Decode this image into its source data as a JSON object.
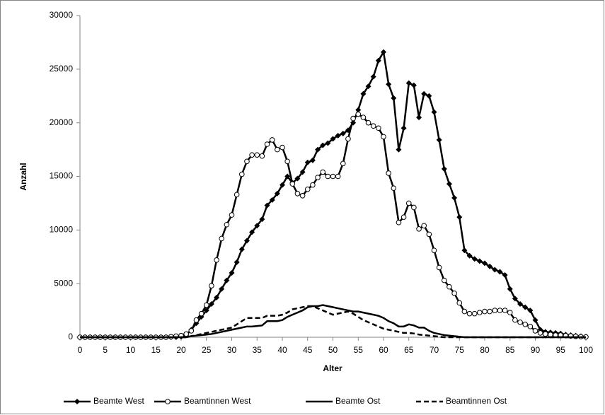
{
  "chart_data": {
    "type": "line",
    "x_label": "Alter",
    "y_label": "Anzahl",
    "x": [
      0,
      1,
      2,
      3,
      4,
      5,
      6,
      7,
      8,
      9,
      10,
      11,
      12,
      13,
      14,
      15,
      16,
      17,
      18,
      19,
      20,
      21,
      22,
      23,
      24,
      25,
      26,
      27,
      28,
      29,
      30,
      31,
      32,
      33,
      34,
      35,
      36,
      37,
      38,
      39,
      40,
      41,
      42,
      43,
      44,
      45,
      46,
      47,
      48,
      49,
      50,
      51,
      52,
      53,
      54,
      55,
      56,
      57,
      58,
      59,
      60,
      61,
      62,
      63,
      64,
      65,
      66,
      67,
      68,
      69,
      70,
      71,
      72,
      73,
      74,
      75,
      76,
      77,
      78,
      79,
      80,
      81,
      82,
      83,
      84,
      85,
      86,
      87,
      88,
      89,
      90,
      91,
      92,
      93,
      94,
      95,
      96,
      97,
      98,
      99,
      100
    ],
    "xlim": [
      0,
      100
    ],
    "xticks": [
      0,
      5,
      10,
      15,
      20,
      25,
      30,
      35,
      40,
      45,
      50,
      55,
      60,
      65,
      70,
      75,
      80,
      85,
      90,
      95,
      100
    ],
    "ylim": [
      0,
      30000
    ],
    "yticks": [
      0,
      5000,
      10000,
      15000,
      20000,
      25000,
      30000
    ],
    "grid": false,
    "legend": "bottom",
    "series": [
      {
        "name": "Beamte West",
        "color": "#000000",
        "marker": "diamond",
        "dash": "solid",
        "values": [
          0,
          0,
          0,
          0,
          0,
          0,
          0,
          0,
          0,
          0,
          0,
          0,
          0,
          0,
          0,
          0,
          0,
          0,
          0,
          0,
          50,
          200,
          700,
          1300,
          1900,
          2500,
          3100,
          3700,
          4500,
          5300,
          6000,
          7000,
          8200,
          9000,
          9800,
          10400,
          11000,
          12300,
          12800,
          13400,
          14200,
          15000,
          14400,
          14800,
          15400,
          16300,
          16500,
          17500,
          17900,
          18100,
          18500,
          18800,
          19000,
          19300,
          20000,
          21200,
          22700,
          23400,
          24300,
          25800,
          26600,
          23600,
          22300,
          17500,
          19500,
          23700,
          23500,
          20500,
          22700,
          22500,
          21000,
          18400,
          15700,
          14300,
          13000,
          11200,
          8100,
          7600,
          7300,
          7100,
          6900,
          6600,
          6300,
          6100,
          5800,
          4500,
          3600,
          3100,
          2800,
          2500,
          1600,
          700,
          500,
          450,
          400,
          350,
          250,
          200,
          150,
          100,
          50
        ]
      },
      {
        "name": "Beamtinnen West",
        "color": "#000000",
        "marker": "circle",
        "dash": "solid",
        "values": [
          0,
          0,
          0,
          0,
          0,
          0,
          0,
          0,
          0,
          0,
          0,
          0,
          0,
          0,
          0,
          0,
          0,
          0,
          50,
          100,
          150,
          300,
          600,
          1600,
          2200,
          3000,
          4800,
          7200,
          9200,
          10500,
          11400,
          13300,
          15200,
          16400,
          17000,
          17000,
          16900,
          18000,
          18400,
          17500,
          17700,
          16400,
          14300,
          13400,
          13200,
          13800,
          14200,
          14900,
          15400,
          15000,
          15000,
          15000,
          16200,
          18500,
          20400,
          20800,
          20500,
          20000,
          19700,
          19500,
          18700,
          15300,
          13900,
          10700,
          11200,
          12500,
          12100,
          10100,
          10400,
          9600,
          8100,
          6500,
          5300,
          4700,
          4100,
          3200,
          2400,
          2200,
          2200,
          2300,
          2400,
          2400,
          2500,
          2500,
          2500,
          2300,
          1600,
          1400,
          1200,
          1000,
          600,
          400,
          300,
          250,
          200,
          200,
          150,
          120,
          80,
          50,
          30
        ]
      },
      {
        "name": "Beamte Ost",
        "color": "#000000",
        "marker": "none",
        "dash": "solid",
        "values": [
          0,
          0,
          0,
          0,
          0,
          0,
          0,
          0,
          0,
          0,
          0,
          0,
          0,
          0,
          0,
          0,
          0,
          0,
          0,
          0,
          0,
          0,
          100,
          150,
          200,
          250,
          300,
          400,
          500,
          600,
          700,
          800,
          900,
          1000,
          1000,
          1050,
          1100,
          1500,
          1500,
          1500,
          1600,
          1900,
          2100,
          2300,
          2500,
          2800,
          2900,
          2900,
          3000,
          2900,
          2800,
          2700,
          2600,
          2500,
          2400,
          2400,
          2300,
          2200,
          2100,
          2000,
          1800,
          1500,
          1300,
          1000,
          1000,
          1200,
          1100,
          900,
          900,
          600,
          400,
          300,
          200,
          150,
          100,
          50,
          0,
          0,
          0,
          0,
          0,
          0,
          0,
          0,
          0,
          0,
          0,
          0,
          0,
          0,
          0,
          0,
          0,
          0,
          0,
          0,
          0,
          0,
          0,
          0,
          0
        ]
      },
      {
        "name": "Beamtinnen Ost",
        "color": "#000000",
        "marker": "none",
        "dash": "dashed",
        "values": [
          0,
          0,
          0,
          0,
          0,
          0,
          0,
          0,
          0,
          0,
          0,
          0,
          0,
          0,
          0,
          0,
          0,
          0,
          0,
          0,
          0,
          0,
          100,
          200,
          300,
          400,
          500,
          600,
          700,
          800,
          900,
          1200,
          1500,
          1800,
          1800,
          1800,
          1800,
          2000,
          2000,
          2000,
          2100,
          2300,
          2600,
          2700,
          2800,
          2900,
          2900,
          2700,
          2500,
          2300,
          2100,
          2200,
          2300,
          2400,
          2200,
          1900,
          1600,
          1400,
          1200,
          1000,
          800,
          700,
          600,
          500,
          400,
          400,
          350,
          250,
          200,
          150,
          100,
          50,
          0,
          0,
          0,
          0,
          0,
          0,
          0,
          0,
          0,
          0,
          0,
          0,
          0,
          0,
          0,
          0,
          0,
          0,
          0,
          0,
          0,
          0,
          0,
          0,
          0,
          0,
          0,
          0,
          0
        ]
      }
    ]
  }
}
